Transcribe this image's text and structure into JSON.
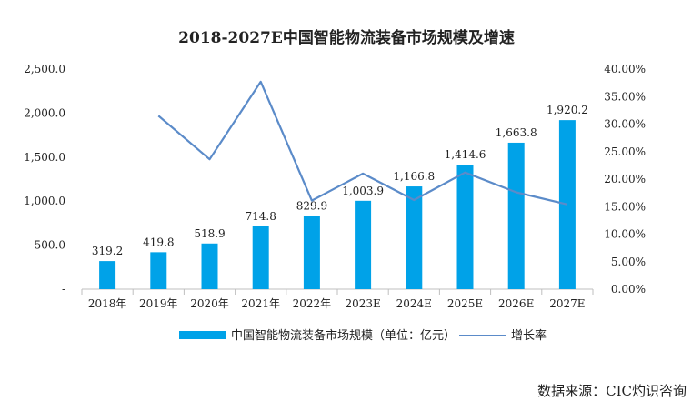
{
  "chart_data": {
    "type": "bar+line",
    "title": "2018-2027E中国智能物流装备市场规模及增速",
    "categories": [
      "2018年",
      "2019年",
      "2020年",
      "2021年",
      "2022年",
      "2023E",
      "2024E",
      "2025E",
      "2026E",
      "2027E"
    ],
    "series": [
      {
        "name": "中国智能物流装备市场规模（单位：亿元）",
        "type": "bar",
        "axis": "left",
        "color": "#00A2E8",
        "values": [
          319.2,
          419.8,
          518.9,
          714.8,
          829.9,
          1003.9,
          1166.8,
          1414.6,
          1663.8,
          1920.2
        ],
        "labels": [
          "319.2",
          "419.8",
          "518.9",
          "714.8",
          "829.9",
          "1,003.9",
          "1,166.8",
          "1,414.6",
          "1,663.8",
          "1,920.2"
        ]
      },
      {
        "name": "增长率",
        "type": "line",
        "axis": "right",
        "color": "#5B8BC9",
        "values": [
          null,
          31.5,
          23.6,
          37.7,
          16.1,
          21.0,
          16.2,
          21.2,
          17.6,
          15.4
        ]
      }
    ],
    "y_left": {
      "min": 0,
      "max": 2500,
      "ticks": [
        "-",
        "500.0",
        "1,000.0",
        "1,500.0",
        "2,000.0",
        "2,500.0"
      ]
    },
    "y_right": {
      "min": 0,
      "max": 40,
      "ticks": [
        "0.00%",
        "5.00%",
        "10.00%",
        "15.00%",
        "20.00%",
        "25.00%",
        "30.00%",
        "35.00%",
        "40.00%"
      ]
    },
    "legend_position": "bottom"
  },
  "source": "数据来源：CIC灼识咨询"
}
